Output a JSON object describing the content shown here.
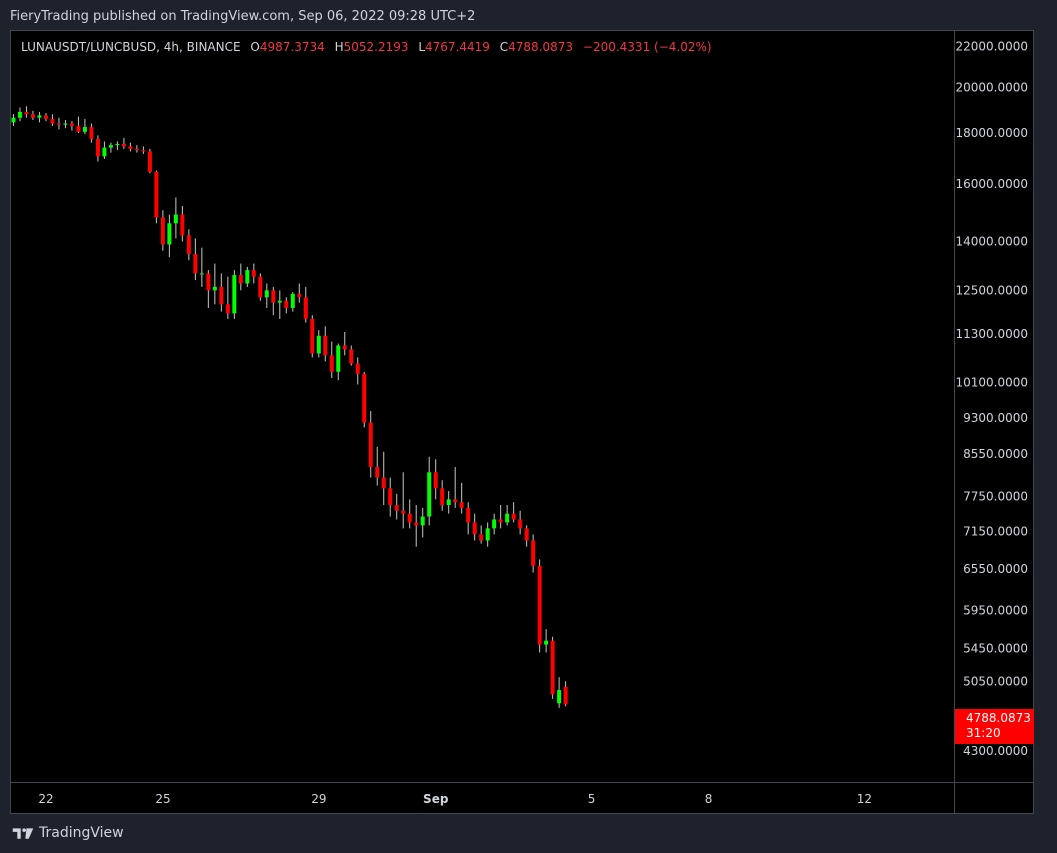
{
  "header": {
    "text": "FieryTrading published on TradingView.com, Sep 06, 2022 09:28 UTC+2"
  },
  "legend": {
    "symbol": "LUNAUSDT/LUNCBUSD, 4h, BINANCE",
    "open_label": "O",
    "open": "4987.3734",
    "high_label": "H",
    "high": "5052.2193",
    "low_label": "L",
    "low": "4767.4419",
    "close_label": "C",
    "close": "4788.0873",
    "change": "−200.4331 (−4.02%)"
  },
  "price_tag": {
    "price": "4788.0873",
    "countdown": "31:20"
  },
  "footer": {
    "brand": "TradingView",
    "logo_icon": "tradingview-logo-icon"
  },
  "colors": {
    "up": "#00ff00",
    "down": "#ff0000",
    "background": "#000000",
    "frame": "#1e222d",
    "text": "#d1d4dc"
  },
  "chart_data": {
    "type": "candlestick",
    "interval": "4h",
    "scale": "log",
    "ylim": [
      4000,
      22800
    ],
    "y_ticks": [
      22000,
      20000,
      18000,
      16000,
      14000,
      12500,
      11300,
      10100,
      9300,
      8550,
      7750,
      7150,
      6550,
      5950,
      5450,
      5050,
      4300
    ],
    "x_ticks": [
      {
        "label": "22",
        "day": 22,
        "bold": false
      },
      {
        "label": "25",
        "day": 25,
        "bold": false
      },
      {
        "label": "29",
        "day": 29,
        "bold": false
      },
      {
        "label": "Sep",
        "day": 32,
        "bold": true
      },
      {
        "label": "5",
        "day": 36,
        "bold": false
      },
      {
        "label": "8",
        "day": 39,
        "bold": false
      },
      {
        "label": "12",
        "day": 43,
        "bold": false
      }
    ],
    "xlim_days": [
      21.1,
      45.3
    ],
    "first_candle_day": 20.83,
    "candle_interval_days": 0.1667,
    "candles": [
      [
        18400,
        18700,
        18150,
        18550
      ],
      [
        18550,
        18700,
        18300,
        18450
      ],
      [
        18450,
        18800,
        18300,
        18650
      ],
      [
        18650,
        19100,
        18500,
        18900
      ],
      [
        18900,
        19150,
        18650,
        18800
      ],
      [
        18800,
        18950,
        18550,
        18650
      ],
      [
        18650,
        18900,
        18450,
        18750
      ],
      [
        18750,
        18850,
        18500,
        18600
      ],
      [
        18600,
        18800,
        18300,
        18400
      ],
      [
        18400,
        18650,
        18150,
        18350
      ],
      [
        18350,
        18550,
        18200,
        18400
      ],
      [
        18400,
        18500,
        18100,
        18300
      ],
      [
        18300,
        18700,
        18000,
        18050
      ],
      [
        18050,
        18600,
        17950,
        18250
      ],
      [
        18250,
        18400,
        17600,
        17750
      ],
      [
        17750,
        17900,
        16850,
        17050
      ],
      [
        17050,
        17650,
        16950,
        17400
      ],
      [
        17400,
        17600,
        17200,
        17500
      ],
      [
        17500,
        17650,
        17300,
        17550
      ],
      [
        17550,
        17800,
        17350,
        17450
      ],
      [
        17450,
        17600,
        17250,
        17350
      ],
      [
        17350,
        17500,
        17200,
        17300
      ],
      [
        17300,
        17450,
        17150,
        17250
      ],
      [
        17250,
        17350,
        16400,
        16450
      ],
      [
        16450,
        16500,
        14600,
        14800
      ],
      [
        14800,
        15050,
        13700,
        13900
      ],
      [
        13900,
        14900,
        13500,
        14600
      ],
      [
        14600,
        15500,
        14100,
        14900
      ],
      [
        14900,
        15200,
        14000,
        14200
      ],
      [
        14200,
        14400,
        13400,
        13600
      ],
      [
        13600,
        14100,
        12800,
        13000
      ],
      [
        13000,
        13800,
        12600,
        13000
      ],
      [
        13000,
        13100,
        12000,
        12500
      ],
      [
        12500,
        13300,
        12100,
        12600
      ],
      [
        12600,
        13000,
        11900,
        12100
      ],
      [
        12100,
        12900,
        11700,
        11850
      ],
      [
        11850,
        13100,
        11700,
        12950
      ],
      [
        12950,
        13300,
        12500,
        12700
      ],
      [
        12700,
        13200,
        12600,
        13100
      ],
      [
        13100,
        13300,
        12700,
        12900
      ],
      [
        12900,
        13000,
        12200,
        12300
      ],
      [
        12300,
        12700,
        12000,
        12500
      ],
      [
        12500,
        12600,
        11800,
        12150
      ],
      [
        12150,
        12500,
        11700,
        12200
      ],
      [
        12200,
        12300,
        11850,
        12000
      ],
      [
        12000,
        12450,
        11900,
        12400
      ],
      [
        12400,
        12700,
        12150,
        12300
      ],
      [
        12300,
        12600,
        11600,
        11700
      ],
      [
        11700,
        11800,
        10700,
        10800
      ],
      [
        10800,
        11400,
        10700,
        11250
      ],
      [
        11250,
        11500,
        10600,
        10750
      ],
      [
        10750,
        11100,
        10200,
        10350
      ],
      [
        10350,
        11050,
        10150,
        11000
      ],
      [
        11000,
        11350,
        10750,
        10900
      ],
      [
        10900,
        11000,
        10500,
        10550
      ],
      [
        10550,
        10700,
        10050,
        10300
      ],
      [
        10300,
        10350,
        9100,
        9200
      ],
      [
        9200,
        9450,
        8100,
        8300
      ],
      [
        8300,
        8700,
        7950,
        8100
      ],
      [
        8100,
        8600,
        7600,
        7900
      ],
      [
        7900,
        8100,
        7400,
        7600
      ],
      [
        7600,
        7800,
        7350,
        7500
      ],
      [
        7500,
        8200,
        7200,
        7450
      ],
      [
        7450,
        7700,
        7200,
        7300
      ],
      [
        7300,
        7600,
        6900,
        7250
      ],
      [
        7250,
        7550,
        7050,
        7400
      ],
      [
        7400,
        8500,
        7250,
        8200
      ],
      [
        8200,
        8450,
        7700,
        7900
      ],
      [
        7900,
        8050,
        7500,
        7600
      ],
      [
        7600,
        7850,
        7450,
        7700
      ],
      [
        7700,
        8300,
        7550,
        7650
      ],
      [
        7650,
        8000,
        7450,
        7550
      ],
      [
        7550,
        7650,
        7100,
        7300
      ],
      [
        7300,
        7450,
        7000,
        7100
      ],
      [
        7100,
        7250,
        6950,
        7000
      ],
      [
        7000,
        7300,
        6900,
        7200
      ],
      [
        7200,
        7450,
        7100,
        7350
      ],
      [
        7350,
        7600,
        7200,
        7300
      ],
      [
        7300,
        7600,
        7250,
        7450
      ],
      [
        7450,
        7650,
        7300,
        7350
      ],
      [
        7350,
        7500,
        7100,
        7200
      ],
      [
        7200,
        7250,
        6900,
        7000
      ],
      [
        7000,
        7100,
        6500,
        6600
      ],
      [
        6600,
        6700,
        5400,
        5500
      ],
      [
        5500,
        5700,
        5400,
        5550
      ],
      [
        5550,
        5600,
        4850,
        4900
      ],
      [
        4800,
        5100,
        4750,
        4950
      ],
      [
        4987.3734,
        5052.2193,
        4767.4419,
        4788.0873
      ]
    ],
    "last_price": 4788.0873
  }
}
